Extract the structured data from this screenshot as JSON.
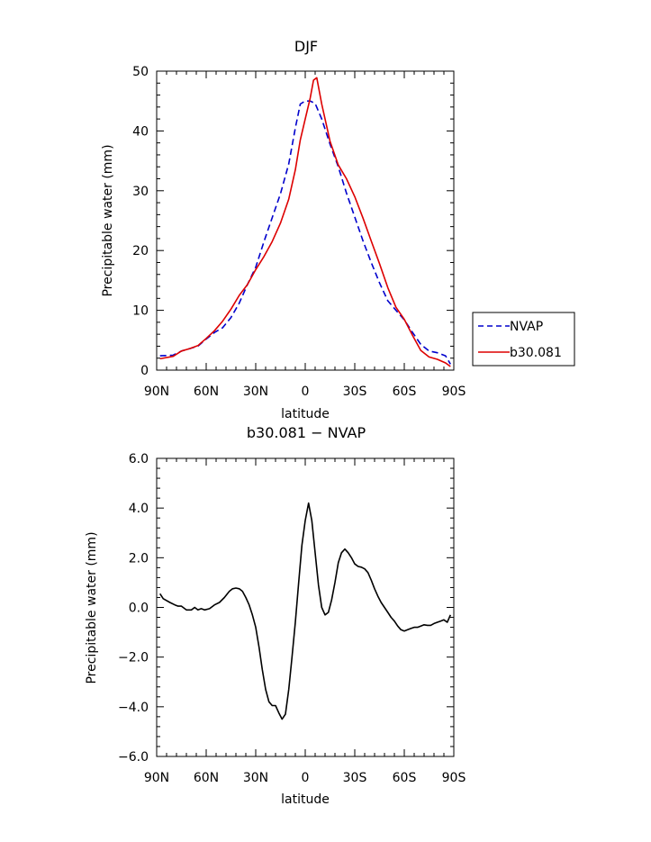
{
  "chart_data": [
    {
      "type": "line",
      "title": "DJF",
      "xlabel": "latitude",
      "ylabel": "Precipitable water (mm)",
      "xlim": [
        -90,
        90
      ],
      "ylim": [
        0,
        50
      ],
      "xticks": [
        -90,
        -60,
        -30,
        0,
        30,
        60,
        90
      ],
      "xtick_labels": [
        "90N",
        "60N",
        "30N",
        "0",
        "30S",
        "60S",
        "90S"
      ],
      "yticks": [
        0,
        10,
        20,
        30,
        40,
        50
      ],
      "ytick_labels": [
        "0",
        "10",
        "20",
        "30",
        "40",
        "50"
      ],
      "legend_position": "right",
      "series": [
        {
          "name": "NVAP",
          "color": "#0000cc",
          "style": "dashed",
          "x": [
            -88,
            -80,
            -75,
            -70,
            -65,
            -60,
            -55,
            -50,
            -45,
            -40,
            -35,
            -30,
            -25,
            -20,
            -15,
            -10,
            -6,
            -3,
            0,
            3,
            6,
            10,
            15,
            20,
            25,
            30,
            35,
            40,
            45,
            50,
            55,
            60,
            65,
            70,
            75,
            80,
            85,
            88
          ],
          "y": [
            2.4,
            2.5,
            3.2,
            3.6,
            4.0,
            5.2,
            6.3,
            7.1,
            8.8,
            11.2,
            14.3,
            17.2,
            21.5,
            25.5,
            29.5,
            34.5,
            40.5,
            44.5,
            45.0,
            45.0,
            44.6,
            42.0,
            37.8,
            34.0,
            29.6,
            25.6,
            21.6,
            18.0,
            14.6,
            11.6,
            10.0,
            8.4,
            6.3,
            4.3,
            3.2,
            2.9,
            2.4,
            1.0
          ]
        },
        {
          "name": "b30.081",
          "color": "#dd0000",
          "style": "solid",
          "x": [
            -88,
            -80,
            -75,
            -70,
            -65,
            -60,
            -55,
            -50,
            -45,
            -40,
            -35,
            -30,
            -25,
            -20,
            -15,
            -10,
            -6,
            -3,
            0,
            3,
            5,
            7,
            10,
            15,
            20,
            25,
            30,
            35,
            40,
            45,
            50,
            55,
            60,
            65,
            70,
            75,
            80,
            85,
            88
          ],
          "y": [
            1.9,
            2.3,
            3.2,
            3.6,
            4.1,
            5.3,
            6.6,
            8.2,
            10.2,
            12.5,
            14.3,
            16.8,
            19.0,
            21.5,
            24.6,
            28.6,
            33.5,
            38.5,
            42.0,
            45.5,
            48.5,
            48.9,
            44.5,
            38.3,
            34.3,
            32.0,
            29.0,
            25.4,
            21.6,
            17.8,
            13.8,
            10.5,
            8.5,
            5.8,
            3.3,
            2.2,
            1.8,
            1.2,
            0.6
          ]
        }
      ]
    },
    {
      "type": "line",
      "title": "b30.081 − NVAP",
      "xlabel": "latitude",
      "ylabel": "Precipitable water (mm)",
      "xlim": [
        -90,
        90
      ],
      "ylim": [
        -6,
        6
      ],
      "xticks": [
        -90,
        -60,
        -30,
        0,
        30,
        60,
        90
      ],
      "xtick_labels": [
        "90N",
        "60N",
        "30N",
        "0",
        "30S",
        "60S",
        "90S"
      ],
      "yticks": [
        -6,
        -4,
        -2,
        0,
        2,
        4,
        6
      ],
      "ytick_labels": [
        "−6.0",
        "−4.0",
        "−2.0",
        "0.0",
        "2.0",
        "4.0",
        "6.0"
      ],
      "series": [
        {
          "color": "#000000",
          "style": "solid",
          "x": [
            -88,
            -86,
            -82,
            -79,
            -77,
            -75,
            -72,
            -69,
            -67,
            -65,
            -63,
            -61,
            -58,
            -55,
            -52,
            -49,
            -46,
            -44,
            -42,
            -40,
            -38,
            -36,
            -34,
            -32,
            -30,
            -28,
            -26,
            -24,
            -22,
            -20,
            -18,
            -16,
            -14,
            -12,
            -10,
            -8,
            -6,
            -4,
            -2,
            0,
            2,
            4,
            6,
            8,
            10,
            12,
            14,
            16,
            18,
            20,
            22,
            24,
            26,
            28,
            30,
            32,
            34,
            36,
            38,
            40,
            42,
            44,
            46,
            48,
            50,
            52,
            54,
            56,
            58,
            60,
            62,
            64,
            66,
            68,
            70,
            72,
            74,
            76,
            78,
            80,
            82,
            84,
            86,
            88
          ],
          "y": [
            0.55,
            0.35,
            0.2,
            0.1,
            0.05,
            0.05,
            -0.1,
            -0.1,
            0.0,
            -0.1,
            -0.05,
            -0.1,
            -0.05,
            0.1,
            0.2,
            0.4,
            0.65,
            0.75,
            0.78,
            0.75,
            0.65,
            0.4,
            0.1,
            -0.3,
            -0.8,
            -1.6,
            -2.5,
            -3.3,
            -3.8,
            -3.95,
            -3.95,
            -4.25,
            -4.5,
            -4.3,
            -3.3,
            -2.0,
            -0.6,
            1.0,
            2.5,
            3.5,
            4.2,
            3.5,
            2.2,
            0.9,
            0.0,
            -0.3,
            -0.2,
            0.3,
            1.0,
            1.8,
            2.2,
            2.35,
            2.2,
            2.0,
            1.75,
            1.65,
            1.62,
            1.55,
            1.4,
            1.1,
            0.75,
            0.45,
            0.2,
            0.0,
            -0.2,
            -0.4,
            -0.55,
            -0.75,
            -0.9,
            -0.95,
            -0.9,
            -0.85,
            -0.8,
            -0.8,
            -0.75,
            -0.7,
            -0.72,
            -0.72,
            -0.65,
            -0.6,
            -0.55,
            -0.5,
            -0.6,
            -0.3
          ]
        }
      ]
    }
  ]
}
